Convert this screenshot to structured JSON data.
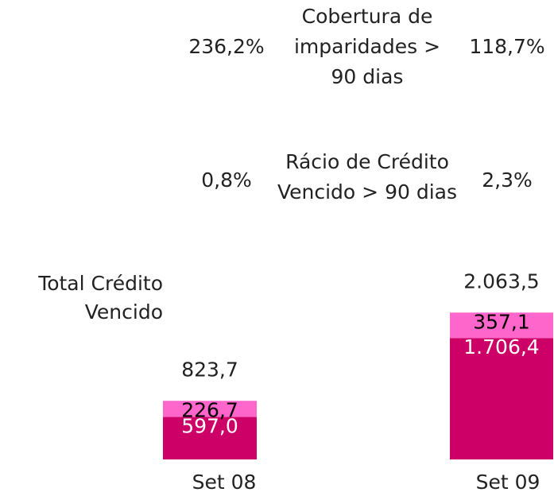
{
  "chart_data": {
    "type": "bar",
    "stacked": true,
    "categories": [
      "Set 08",
      "Set 09"
    ],
    "series": [
      {
        "color": "#cc0066",
        "values": [
          597.0,
          1706.4
        ],
        "value_labels": [
          "597,0",
          "1.706,4"
        ],
        "label_color": "#ffffff"
      },
      {
        "color": "#ff66cc",
        "values": [
          226.7,
          357.1
        ],
        "value_labels": [
          "226,7",
          "357,1"
        ],
        "label_color": "#000000"
      }
    ],
    "totals": [
      823.7,
      2063.5
    ],
    "total_labels": [
      "823,7",
      "2.063,5"
    ],
    "total_title": "Total Crédito\nVencido",
    "ylim": [
      0,
      2100
    ],
    "metrics": [
      {
        "label": "Cobertura de\nimparidades >\n90 dias",
        "values": [
          236.2,
          118.7
        ],
        "value_labels": [
          "236,2%",
          "118,7%"
        ]
      },
      {
        "label": "Rácio de Crédito\nVencido > 90 dias",
        "values": [
          0.8,
          2.3
        ],
        "value_labels": [
          "0,8%",
          "2,3%"
        ]
      }
    ]
  }
}
